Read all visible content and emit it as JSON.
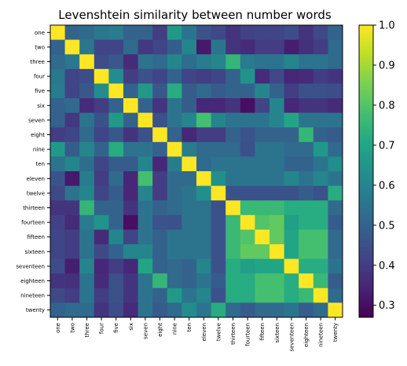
{
  "chart_data": {
    "type": "heatmap",
    "title": "Levenshtein similarity between number words",
    "labels": [
      "one",
      "two",
      "three",
      "four",
      "five",
      "six",
      "seven",
      "eight",
      "nine",
      "ten",
      "eleven",
      "twelve",
      "thirteen",
      "fourteen",
      "fifteen",
      "sixteen",
      "seventeen",
      "eighteen",
      "nineteen",
      "twenty"
    ],
    "colorbar": {
      "min": 0.27,
      "max": 1.0,
      "ticks": [
        0.3,
        0.4,
        0.5,
        0.6,
        0.7,
        0.8,
        0.9,
        1.0
      ],
      "colormap": "viridis"
    },
    "matrix": [
      [
        1.0,
        0.5,
        0.52,
        0.56,
        0.57,
        0.5,
        0.5,
        0.4,
        0.66,
        0.55,
        0.46,
        0.43,
        0.38,
        0.41,
        0.42,
        0.42,
        0.44,
        0.38,
        0.43,
        0.5
      ],
      [
        0.5,
        1.0,
        0.56,
        0.42,
        0.42,
        0.52,
        0.39,
        0.42,
        0.48,
        0.6,
        0.32,
        0.55,
        0.38,
        0.36,
        0.4,
        0.4,
        0.33,
        0.37,
        0.4,
        0.52
      ],
      [
        0.52,
        0.56,
        1.0,
        0.44,
        0.47,
        0.36,
        0.55,
        0.52,
        0.6,
        0.53,
        0.57,
        0.6,
        0.75,
        0.57,
        0.55,
        0.55,
        0.6,
        0.55,
        0.55,
        0.52
      ],
      [
        0.56,
        0.42,
        0.44,
        1.0,
        0.62,
        0.4,
        0.45,
        0.42,
        0.5,
        0.42,
        0.4,
        0.42,
        0.5,
        0.64,
        0.36,
        0.43,
        0.35,
        0.36,
        0.4,
        0.38
      ],
      [
        0.57,
        0.42,
        0.47,
        0.62,
        1.0,
        0.5,
        0.66,
        0.47,
        0.72,
        0.48,
        0.52,
        0.48,
        0.5,
        0.5,
        0.6,
        0.5,
        0.4,
        0.45,
        0.45,
        0.44
      ],
      [
        0.5,
        0.52,
        0.36,
        0.4,
        0.5,
        1.0,
        0.5,
        0.38,
        0.55,
        0.48,
        0.35,
        0.35,
        0.38,
        0.3,
        0.42,
        0.6,
        0.35,
        0.38,
        0.38,
        0.36
      ],
      [
        0.5,
        0.39,
        0.55,
        0.45,
        0.66,
        0.5,
        1.0,
        0.45,
        0.55,
        0.6,
        0.78,
        0.6,
        0.55,
        0.55,
        0.55,
        0.6,
        0.7,
        0.55,
        0.55,
        0.55
      ],
      [
        0.4,
        0.42,
        0.52,
        0.42,
        0.47,
        0.38,
        0.45,
        1.0,
        0.5,
        0.35,
        0.4,
        0.4,
        0.5,
        0.46,
        0.5,
        0.5,
        0.5,
        0.75,
        0.5,
        0.48
      ],
      [
        0.66,
        0.48,
        0.6,
        0.5,
        0.72,
        0.55,
        0.55,
        0.5,
        1.0,
        0.57,
        0.52,
        0.52,
        0.52,
        0.45,
        0.55,
        0.55,
        0.52,
        0.52,
        0.66,
        0.52
      ],
      [
        0.55,
        0.6,
        0.53,
        0.42,
        0.48,
        0.48,
        0.6,
        0.35,
        0.57,
        1.0,
        0.52,
        0.55,
        0.55,
        0.55,
        0.55,
        0.55,
        0.5,
        0.5,
        0.55,
        0.62
      ],
      [
        0.46,
        0.32,
        0.57,
        0.4,
        0.52,
        0.35,
        0.78,
        0.4,
        0.52,
        0.52,
        1.0,
        0.63,
        0.55,
        0.55,
        0.55,
        0.55,
        0.6,
        0.55,
        0.6,
        0.55
      ],
      [
        0.43,
        0.55,
        0.6,
        0.42,
        0.48,
        0.35,
        0.6,
        0.4,
        0.52,
        0.55,
        0.63,
        1.0,
        0.45,
        0.45,
        0.45,
        0.45,
        0.45,
        0.48,
        0.45,
        0.72
      ],
      [
        0.38,
        0.38,
        0.75,
        0.5,
        0.5,
        0.38,
        0.55,
        0.5,
        0.52,
        0.55,
        0.55,
        0.45,
        1.0,
        0.76,
        0.76,
        0.76,
        0.72,
        0.72,
        0.72,
        0.52
      ],
      [
        0.41,
        0.36,
        0.57,
        0.64,
        0.5,
        0.3,
        0.55,
        0.46,
        0.45,
        0.55,
        0.55,
        0.45,
        0.76,
        1.0,
        0.8,
        0.82,
        0.68,
        0.72,
        0.72,
        0.48
      ],
      [
        0.42,
        0.4,
        0.55,
        0.36,
        0.6,
        0.42,
        0.55,
        0.5,
        0.55,
        0.55,
        0.55,
        0.45,
        0.76,
        0.8,
        1.0,
        0.82,
        0.7,
        0.78,
        0.78,
        0.52
      ],
      [
        0.42,
        0.4,
        0.55,
        0.43,
        0.5,
        0.6,
        0.6,
        0.5,
        0.55,
        0.55,
        0.55,
        0.45,
        0.76,
        0.82,
        0.82,
        1.0,
        0.7,
        0.78,
        0.78,
        0.52
      ],
      [
        0.44,
        0.33,
        0.6,
        0.35,
        0.4,
        0.35,
        0.7,
        0.5,
        0.52,
        0.5,
        0.6,
        0.45,
        0.72,
        0.68,
        0.7,
        0.7,
        1.0,
        0.72,
        0.72,
        0.55
      ],
      [
        0.38,
        0.37,
        0.55,
        0.36,
        0.45,
        0.38,
        0.55,
        0.75,
        0.52,
        0.5,
        0.55,
        0.48,
        0.72,
        0.72,
        0.78,
        0.78,
        0.72,
        1.0,
        0.76,
        0.48
      ],
      [
        0.43,
        0.4,
        0.55,
        0.4,
        0.45,
        0.38,
        0.55,
        0.5,
        0.66,
        0.55,
        0.6,
        0.45,
        0.72,
        0.72,
        0.78,
        0.78,
        0.72,
        0.76,
        1.0,
        0.52
      ],
      [
        0.5,
        0.52,
        0.52,
        0.38,
        0.44,
        0.36,
        0.55,
        0.48,
        0.52,
        0.62,
        0.55,
        0.72,
        0.52,
        0.48,
        0.52,
        0.52,
        0.55,
        0.48,
        0.52,
        1.0
      ]
    ]
  }
}
